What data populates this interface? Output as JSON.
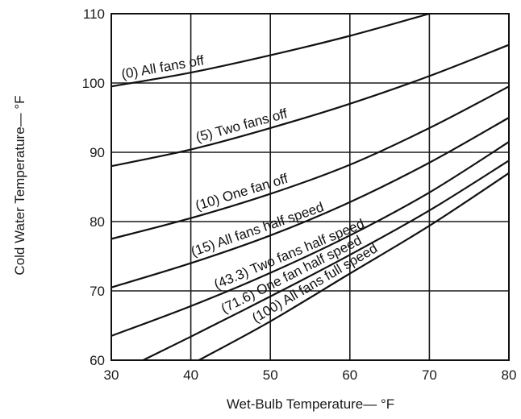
{
  "chart_data": {
    "type": "line",
    "title": "",
    "xlabel": "Wet-Bulb Temperature— °F",
    "ylabel": "Cold Water Temperature— °F",
    "xlim": [
      30,
      80
    ],
    "ylim": [
      60,
      110
    ],
    "x_ticks": [
      "30",
      "40",
      "50",
      "60",
      "70",
      "80"
    ],
    "y_ticks": [
      "60",
      "70",
      "80",
      "90",
      "100",
      "110"
    ],
    "grid": true,
    "series": [
      {
        "name": "(0) All fans off",
        "x": [
          30,
          40,
          50,
          60,
          70
        ],
        "y": [
          99.5,
          101.5,
          104.0,
          106.8,
          110.0
        ]
      },
      {
        "name": "(5) Two fans off",
        "x": [
          30,
          40,
          50,
          60,
          70,
          80
        ],
        "y": [
          88.0,
          90.4,
          93.5,
          97.0,
          101.0,
          105.5
        ]
      },
      {
        "name": "(10) One fan off",
        "x": [
          30,
          40,
          50,
          60,
          70,
          80
        ],
        "y": [
          77.5,
          80.5,
          84.0,
          88.2,
          93.5,
          99.5
        ]
      },
      {
        "name": "(15) All fans half speed",
        "x": [
          30,
          40,
          50,
          60,
          70,
          80
        ],
        "y": [
          70.5,
          74.0,
          78.0,
          82.8,
          88.5,
          95.0
        ]
      },
      {
        "name": "(43.3) Two fans half speed",
        "x": [
          30,
          40,
          50,
          60,
          70,
          80
        ],
        "y": [
          63.5,
          67.8,
          72.6,
          78.0,
          84.2,
          91.5
        ]
      },
      {
        "name": "(71.6) One fan half speed",
        "x": [
          34,
          40,
          50,
          60,
          70,
          80
        ],
        "y": [
          60.0,
          63.4,
          69.2,
          75.2,
          81.6,
          88.8
        ]
      },
      {
        "name": "(100) All fans full speed",
        "x": [
          41,
          50,
          60,
          70,
          80
        ],
        "y": [
          60.0,
          65.6,
          72.5,
          79.4,
          87.0
        ]
      }
    ]
  }
}
